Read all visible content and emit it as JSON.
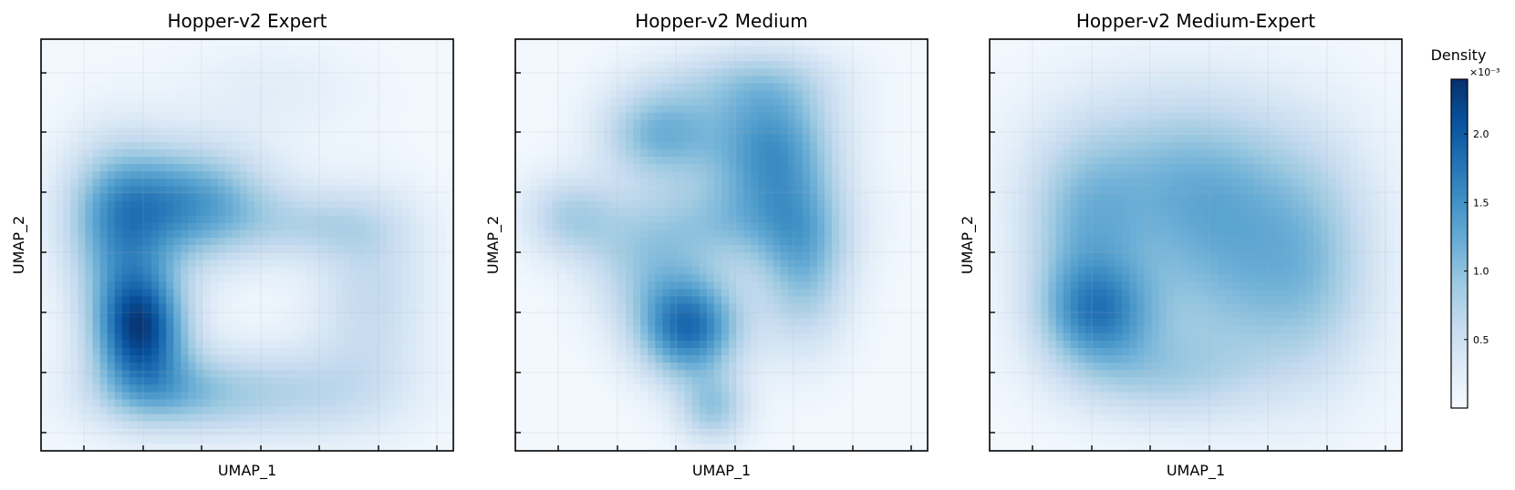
{
  "chart_data": [
    {
      "type": "heatmap",
      "title": "Hopper-v2 Expert",
      "xlabel": "UMAP_1",
      "ylabel": "UMAP_2",
      "grid": true,
      "blobs": [
        {
          "cx": 0.24,
          "cy": 0.7,
          "sx": 0.08,
          "sy": 0.1,
          "w": 2.05
        },
        {
          "cx": 0.36,
          "cy": 0.4,
          "sx": 0.14,
          "sy": 0.1,
          "w": 1.35
        },
        {
          "cx": 0.18,
          "cy": 0.45,
          "sx": 0.09,
          "sy": 0.14,
          "w": 1.05
        },
        {
          "cx": 0.3,
          "cy": 0.86,
          "sx": 0.14,
          "sy": 0.07,
          "w": 0.8
        },
        {
          "cx": 0.6,
          "cy": 0.86,
          "sx": 0.18,
          "sy": 0.08,
          "w": 0.6
        },
        {
          "cx": 0.8,
          "cy": 0.62,
          "sx": 0.1,
          "sy": 0.16,
          "w": 0.55
        },
        {
          "cx": 0.68,
          "cy": 0.45,
          "sx": 0.14,
          "sy": 0.06,
          "w": 0.5
        },
        {
          "cx": 0.56,
          "cy": 0.12,
          "sx": 0.16,
          "sy": 0.08,
          "w": 0.2
        }
      ]
    },
    {
      "type": "heatmap",
      "title": "Hopper-v2 Medium",
      "xlabel": "UMAP_1",
      "ylabel": "UMAP_2",
      "grid": true,
      "blobs": [
        {
          "cx": 0.42,
          "cy": 0.7,
          "sx": 0.09,
          "sy": 0.09,
          "w": 1.75
        },
        {
          "cx": 0.62,
          "cy": 0.26,
          "sx": 0.11,
          "sy": 0.12,
          "w": 1.35
        },
        {
          "cx": 0.35,
          "cy": 0.23,
          "sx": 0.1,
          "sy": 0.08,
          "w": 1.05
        },
        {
          "cx": 0.7,
          "cy": 0.55,
          "sx": 0.08,
          "sy": 0.14,
          "w": 0.95
        },
        {
          "cx": 0.5,
          "cy": 0.45,
          "sx": 0.18,
          "sy": 0.08,
          "w": 0.7
        },
        {
          "cx": 0.13,
          "cy": 0.43,
          "sx": 0.08,
          "sy": 0.07,
          "w": 0.65
        },
        {
          "cx": 0.48,
          "cy": 0.9,
          "sx": 0.06,
          "sy": 0.06,
          "w": 0.8
        },
        {
          "cx": 0.3,
          "cy": 0.55,
          "sx": 0.1,
          "sy": 0.1,
          "w": 0.55
        },
        {
          "cx": 0.55,
          "cy": 0.1,
          "sx": 0.16,
          "sy": 0.06,
          "w": 0.45
        }
      ]
    },
    {
      "type": "heatmap",
      "title": "Hopper-v2 Medium-Expert",
      "xlabel": "UMAP_1",
      "ylabel": "UMAP_2",
      "grid": true,
      "blobs": [
        {
          "cx": 0.26,
          "cy": 0.67,
          "sx": 0.1,
          "sy": 0.09,
          "w": 1.2
        },
        {
          "cx": 0.48,
          "cy": 0.34,
          "sx": 0.22,
          "sy": 0.16,
          "w": 0.95
        },
        {
          "cx": 0.22,
          "cy": 0.48,
          "sx": 0.1,
          "sy": 0.16,
          "w": 0.7
        },
        {
          "cx": 0.62,
          "cy": 0.6,
          "sx": 0.18,
          "sy": 0.18,
          "w": 0.8
        },
        {
          "cx": 0.4,
          "cy": 0.82,
          "sx": 0.16,
          "sy": 0.08,
          "w": 0.55
        },
        {
          "cx": 0.8,
          "cy": 0.55,
          "sx": 0.1,
          "sy": 0.2,
          "w": 0.4
        }
      ]
    }
  ],
  "colorbar": {
    "title": "Density",
    "exponent": "×10⁻³",
    "vmin": 0.0,
    "vmax": 2.4,
    "ticks": [
      0.5,
      1.0,
      1.5,
      2.0
    ],
    "tick_labels": [
      "0.5",
      "1.0",
      "1.5",
      "2.0"
    ],
    "colors": [
      "#f7fbff",
      "#deebf7",
      "#c6dbef",
      "#9ecae1",
      "#6baed6",
      "#4292c6",
      "#2171b5",
      "#08519c",
      "#08306b"
    ]
  }
}
